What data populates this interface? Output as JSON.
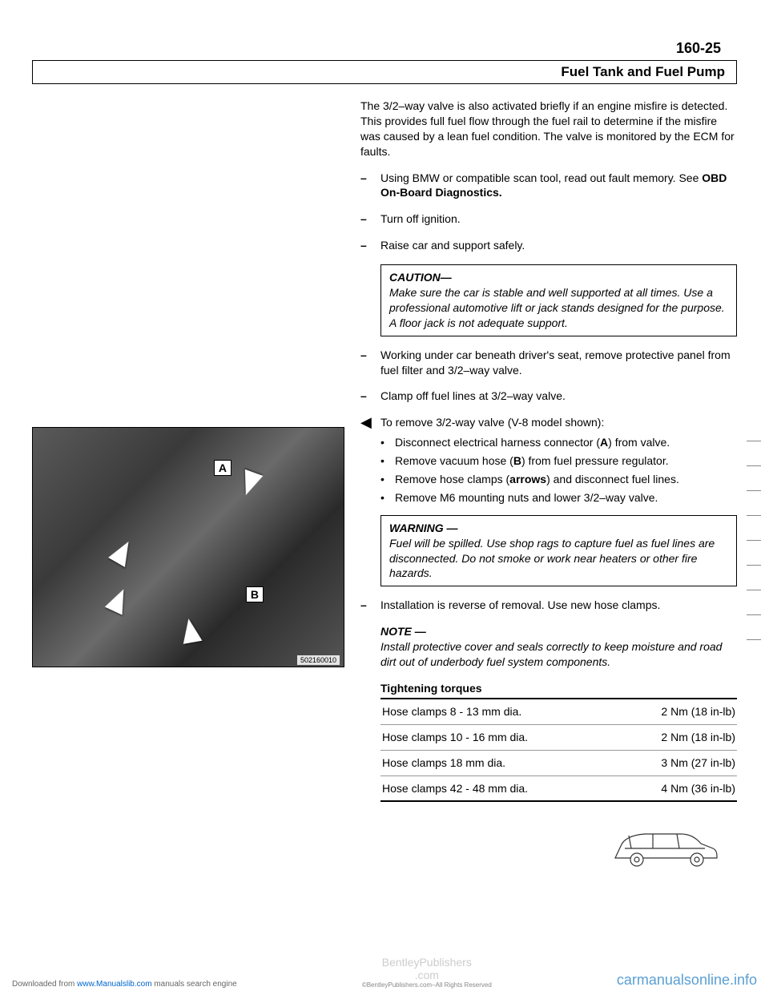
{
  "page_number": "160-25",
  "header_title": "Fuel Tank and Fuel Pump",
  "intro_para": "The 3/2–way valve is also activated briefly if an engine misfire is detected. This provides full fuel flow through the fuel rail to determine if the misfire was caused by a lean fuel condition. The valve is monitored by the ECM for faults.",
  "step_scan": "Using BMW or compatible scan tool, read out fault memory. See ",
  "step_scan_bold": "OBD On-Board Diagnostics.",
  "step_ignition": "Turn off ignition.",
  "step_raise": "Raise car and support safely.",
  "caution": {
    "title": "CAUTION—",
    "body": "Make sure the car is stable and well supported at all times. Use a professional automotive lift or jack stands designed for the purpose. A floor jack is not adequate support."
  },
  "step_panel": "Working under car beneath driver's seat, remove protective panel from fuel filter and 3/2–way valve.",
  "step_clamp": "Clamp off fuel lines at 3/2–way valve.",
  "step_remove_intro": "To remove 3/2-way valve (V-8 model shown):",
  "bullets": [
    {
      "pre": "Disconnect electrical harness connector (",
      "bold": "A",
      "post": ") from valve."
    },
    {
      "pre": "Remove vacuum hose (",
      "bold": "B",
      "post": ") from fuel pressure regulator."
    },
    {
      "pre": "Remove hose clamps (",
      "bold": "arrows",
      "post": ") and disconnect fuel lines."
    },
    {
      "pre": "Remove M6 mounting nuts and lower 3/2–way valve.",
      "bold": "",
      "post": ""
    }
  ],
  "warning": {
    "title": "WARNING —",
    "body": "Fuel will be spilled. Use shop rags to capture fuel as fuel lines are disconnected. Do not smoke or work near heaters or other fire hazards."
  },
  "step_install": "Installation is reverse of removal. Use new hose clamps.",
  "note": {
    "title": "NOTE —",
    "body": "Install protective cover and seals correctly to keep moisture and road dirt out of underbody fuel system components."
  },
  "torque_title": "Tightening torques",
  "torque_rows": [
    {
      "desc": "Hose clamps 8 - 13 mm dia.",
      "val": "2 Nm (18 in-lb)"
    },
    {
      "desc": "Hose clamps 10 - 16 mm dia.",
      "val": "2 Nm (18 in-lb)"
    },
    {
      "desc": "Hose clamps 18 mm dia.",
      "val": "3 Nm (27 in-lb)"
    },
    {
      "desc": "Hose clamps 42 - 48 mm dia.",
      "val": "4 Nm (36 in-lb)"
    }
  ],
  "photo": {
    "label_a": "A",
    "label_b": "B",
    "caption": "502160010"
  },
  "footer": {
    "left_pre": "Downloaded from ",
    "left_link": "www.Manualslib.com",
    "left_post": " manuals search engine",
    "center_top": "BentleyPublishers",
    "center_mid": ".com",
    "center_sub": "©BentleyPublishers.com–All Rights Reserved",
    "right": "carmanualsonline.info"
  }
}
